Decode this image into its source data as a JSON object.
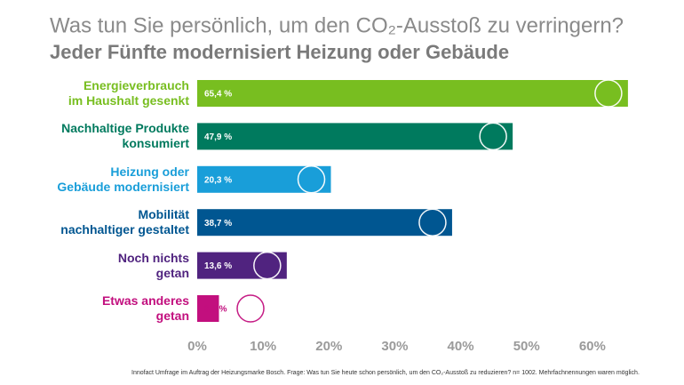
{
  "chart_data": {
    "type": "hbar",
    "title": "Was tun Sie persönlich, um den CO₂-Ausstoß zu verringern?",
    "subtitle": "Jeder Fünfte modernisiert Heizung oder Gebäude",
    "categories": [
      "Energieverbrauch\nim Haushalt gesenkt",
      "Nachhaltige Produkte\nkonsumiert",
      "Heizung oder\nGebäude modernisiert",
      "Mobilität\nnachhaltiger gestaltet",
      "Noch nichts\ngetan",
      "Etwas anderes\ngetan"
    ],
    "values": [
      65.4,
      47.9,
      20.3,
      38.7,
      13.6,
      3.3
    ],
    "value_labels": [
      "65,4 %",
      "47,9 %",
      "20,3 %",
      "38,7 %",
      "13,6 %",
      "3,3 %"
    ],
    "colors": [
      "#78be20",
      "#007a5e",
      "#199ed9",
      "#005691",
      "#50237f",
      "#c20f7e"
    ],
    "xlim": [
      0,
      70
    ],
    "xticks": [
      {
        "value": 0,
        "label": "0%"
      },
      {
        "value": 10,
        "label": "10%"
      },
      {
        "value": 20,
        "label": "20%"
      },
      {
        "value": 30,
        "label": "30%"
      },
      {
        "value": 40,
        "label": "40%"
      },
      {
        "value": 50,
        "label": "50%"
      },
      {
        "value": 60,
        "label": "60%"
      }
    ],
    "footnote": "Innofact Umfrage im Auftrag der Heizungsmarke Bosch. Frage:  Was tun Sie heute schon persönlich, um den CO₂-Ausstoß zu reduzieren? n= 1002. Mehrfachnennungen waren möglich."
  }
}
